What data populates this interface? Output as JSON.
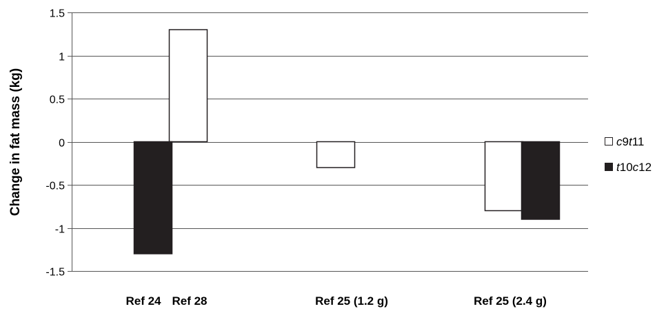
{
  "chart_data": {
    "type": "bar",
    "ylabel": "Change in fat mass (kg)",
    "ylim": [
      -1.5,
      1.5
    ],
    "yticks": [
      1.5,
      1,
      0.5,
      0,
      -0.5,
      -1,
      -1.5
    ],
    "ytick_labels": [
      "1.5",
      "1",
      "0.5",
      "0",
      "-0.5",
      "-1",
      "-1.5"
    ],
    "grid": true,
    "legend_position": "right",
    "categories": [
      "Ref 24",
      "Ref 28",
      "Ref 25 (1.2 g)",
      "Ref 25 (2.4 g)"
    ],
    "series": [
      {
        "name": "c9t11",
        "legend_parts": [
          {
            "text": "c",
            "italic": true
          },
          {
            "text": "9",
            "italic": false
          },
          {
            "text": "t",
            "italic": true
          },
          {
            "text": "11",
            "italic": false
          }
        ],
        "color": "#ffffff",
        "values": [
          null,
          1.3,
          -0.3,
          -0.8
        ]
      },
      {
        "name": "t10c12",
        "legend_parts": [
          {
            "text": "t",
            "italic": true
          },
          {
            "text": "10",
            "italic": false
          },
          {
            "text": "c",
            "italic": true
          },
          {
            "text": "12",
            "italic": false
          }
        ],
        "color": "#231f20",
        "values": [
          -1.3,
          null,
          null,
          -0.9
        ]
      }
    ]
  }
}
